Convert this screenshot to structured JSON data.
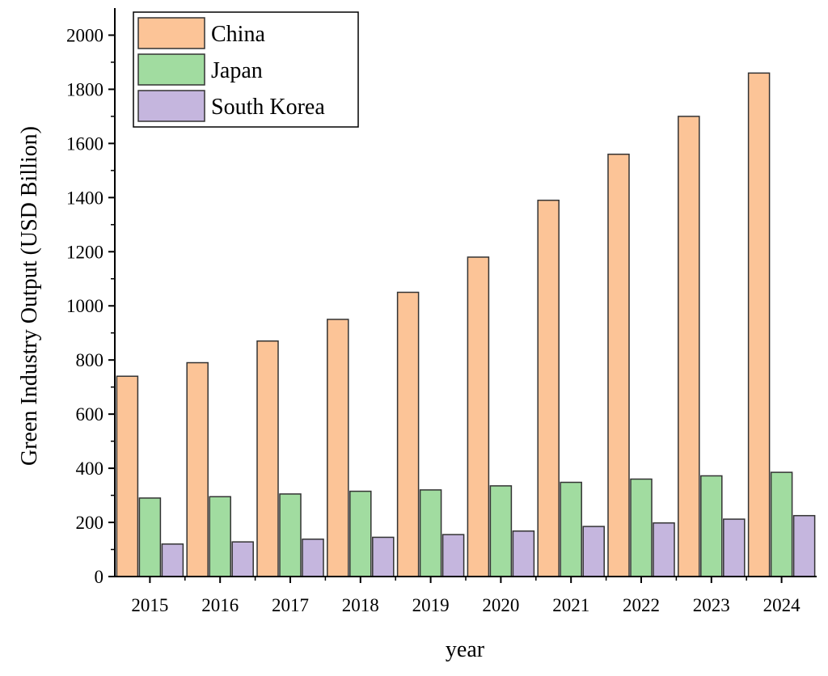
{
  "chart_data": {
    "type": "bar",
    "categories": [
      "2015",
      "2016",
      "2017",
      "2018",
      "2019",
      "2020",
      "2021",
      "2022",
      "2023",
      "2024"
    ],
    "series": [
      {
        "name": "China",
        "color": "#FCC497",
        "values": [
          740,
          790,
          870,
          950,
          1050,
          1180,
          1390,
          1560,
          1700,
          1860
        ]
      },
      {
        "name": "Japan",
        "color": "#A1DCA0",
        "values": [
          290,
          295,
          305,
          315,
          320,
          335,
          348,
          360,
          372,
          385
        ]
      },
      {
        "name": "South Korea",
        "color": "#C5B6DE",
        "values": [
          120,
          128,
          138,
          145,
          155,
          168,
          185,
          198,
          212,
          225
        ]
      }
    ],
    "xlabel": "year",
    "ylabel": "Green Industry Output (USD Billion)",
    "ylim": [
      0,
      2100
    ],
    "yticks": [
      0,
      200,
      400,
      600,
      800,
      1000,
      1200,
      1400,
      1600,
      1800,
      2000
    ],
    "grid": false,
    "legend_position": "top-left"
  }
}
